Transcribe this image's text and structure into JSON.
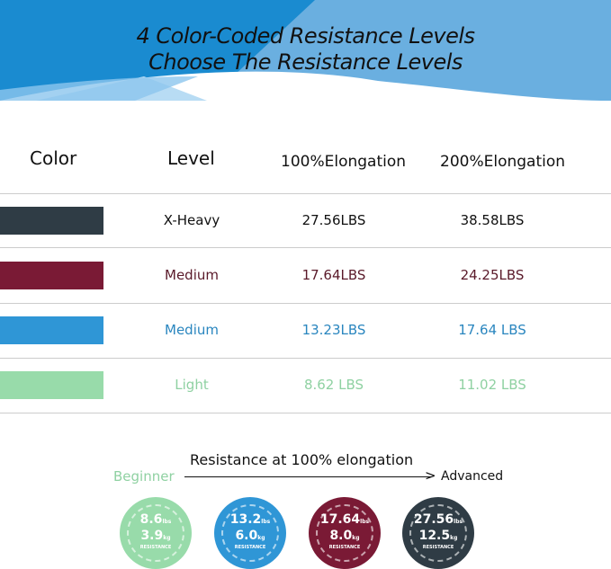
{
  "banner": {
    "line1": "4 Color-Coded Resistance Levels",
    "line2": "Choose The Resistance Levels"
  },
  "table": {
    "headers": [
      "Color",
      "Level",
      "100%Elongation",
      "200%Elongation"
    ],
    "rows": [
      {
        "color": "#2f3c45",
        "level": "X-Heavy",
        "e100": "27.56LBS",
        "e200": "38.58LBS",
        "text_color": "#111111"
      },
      {
        "color": "#7a1a35",
        "level": "Medium",
        "e100": "17.64LBS",
        "e200": "24.25LBS",
        "text_color": "#5a1a2a"
      },
      {
        "color": "#2f96d6",
        "level": "Medium",
        "e100": "13.23LBS",
        "e200": "17.64 LBS",
        "text_color": "#2a86bf"
      },
      {
        "color": "#98dbaa",
        "level": "Light",
        "e100": "8.62 LBS",
        "e200": "11.02 LBS",
        "text_color": "#8fd1a2"
      }
    ]
  },
  "scale": {
    "title": "Resistance at 100% elongation",
    "start": "Beginner",
    "end": "Advanced",
    "circles": [
      {
        "color": "#98dbaa",
        "lbs": "8.6",
        "kg": "3.9",
        "lbs_unit": "lbs",
        "kg_unit": "kg",
        "label": "RESISTANCE"
      },
      {
        "color": "#2f96d6",
        "lbs": "13.2",
        "kg": "6.0",
        "lbs_unit": "lbs",
        "kg_unit": "kg",
        "label": "RESISTANCE"
      },
      {
        "color": "#7a1a35",
        "lbs": "17.64",
        "kg": "8.0",
        "lbs_unit": "lbs",
        "kg_unit": "kg",
        "label": "RESISTANCE"
      },
      {
        "color": "#2f3c45",
        "lbs": "27.56",
        "kg": "12.5",
        "lbs_unit": "lbs",
        "kg_unit": "kg",
        "label": "RESISTANCE"
      }
    ]
  }
}
